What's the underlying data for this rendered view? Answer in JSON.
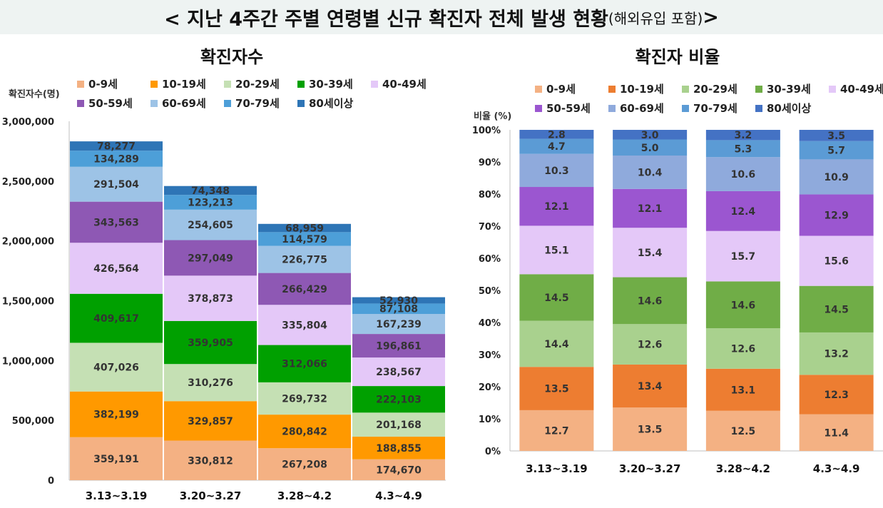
{
  "header": {
    "title": "< 지난 4주간 주별 연령별 신규 확진자 전체 발생 현황",
    "subtitle": "(해외유입 포함)",
    "suffix": ">"
  },
  "colors": [
    "#f4b183",
    "#ff9900",
    "#c5e0b4",
    "#00a000",
    "#e4c8f8",
    "#8e58b4",
    "#9dc3e6",
    "#4d9fd8",
    "#2e75b6"
  ],
  "colors_right": [
    "#f4b183",
    "#ed7d31",
    "#a9d18e",
    "#70ad47",
    "#e4c8f8",
    "#9b56d0",
    "#8faadc",
    "#5b9bd5",
    "#4472c4"
  ],
  "chart_data": [
    {
      "type": "bar",
      "stacked": true,
      "title": "확진자수",
      "ylabel": "확진자수(명)",
      "categories": [
        "3.13~3.19",
        "3.20~3.27",
        "3.28~4.2",
        "4.3~4.9"
      ],
      "ylim": [
        0,
        3000000
      ],
      "yticks": [
        "0",
        "500,000",
        "1,000,000",
        "1,500,000",
        "2,000,000",
        "2,500,000",
        "3,000,000"
      ],
      "legend_position": "top",
      "series": [
        {
          "name": "0-9세",
          "values": [
            359191,
            330812,
            267208,
            174670
          ],
          "labels": [
            "359,191",
            "330,812",
            "267,208",
            "174,670"
          ]
        },
        {
          "name": "10-19세",
          "values": [
            382199,
            329857,
            280842,
            188855
          ],
          "labels": [
            "382,199",
            "329,857",
            "280,842",
            "188,855"
          ]
        },
        {
          "name": "20-29세",
          "values": [
            407026,
            310276,
            269732,
            201168
          ],
          "labels": [
            "407,026",
            "310,276",
            "269,732",
            "201,168"
          ]
        },
        {
          "name": "30-39세",
          "values": [
            409617,
            359905,
            312066,
            222103
          ],
          "labels": [
            "409,617",
            "359,905",
            "312,066",
            "222,103"
          ]
        },
        {
          "name": "40-49세",
          "values": [
            426564,
            378873,
            335804,
            238567
          ],
          "labels": [
            "426,564",
            "378,873",
            "335,804",
            "238,567"
          ]
        },
        {
          "name": "50-59세",
          "values": [
            343563,
            297049,
            266429,
            196861
          ],
          "labels": [
            "343,563",
            "297,049",
            "266,429",
            "196,861"
          ]
        },
        {
          "name": "60-69세",
          "values": [
            291504,
            254605,
            226775,
            167239
          ],
          "labels": [
            "291,504",
            "254,605",
            "226,775",
            "167,239"
          ]
        },
        {
          "name": "70-79세",
          "values": [
            134289,
            123213,
            114579,
            87108
          ],
          "labels": [
            "134,289",
            "123,213",
            "114,579",
            "87,108"
          ]
        },
        {
          "name": "80세이상",
          "values": [
            78277,
            74348,
            68959,
            52930
          ],
          "labels": [
            "78,277",
            "74,348",
            "68,959",
            "52,930"
          ]
        }
      ]
    },
    {
      "type": "bar",
      "stacked": true,
      "title": "확진자 비율",
      "ylabel": "비율 (%)",
      "categories": [
        "3.13~3.19",
        "3.20~3.27",
        "3.28~4.2",
        "4.3~4.9"
      ],
      "ylim": [
        0,
        100
      ],
      "yticks": [
        "0%",
        "10%",
        "20%",
        "30%",
        "40%",
        "50%",
        "60%",
        "70%",
        "80%",
        "90%",
        "100%"
      ],
      "legend_position": "top",
      "series": [
        {
          "name": "0-9세",
          "values": [
            12.7,
            13.5,
            12.5,
            11.4
          ],
          "labels": [
            "12.7",
            "13.5",
            "12.5",
            "11.4"
          ]
        },
        {
          "name": "10-19세",
          "values": [
            13.5,
            13.4,
            13.1,
            12.3
          ],
          "labels": [
            "13.5",
            "13.4",
            "13.1",
            "12.3"
          ]
        },
        {
          "name": "20-29세",
          "values": [
            14.4,
            12.6,
            12.6,
            13.2
          ],
          "labels": [
            "14.4",
            "12.6",
            "12.6",
            "13.2"
          ]
        },
        {
          "name": "30-39세",
          "values": [
            14.5,
            14.6,
            14.6,
            14.5
          ],
          "labels": [
            "14.5",
            "14.6",
            "14.6",
            "14.5"
          ]
        },
        {
          "name": "40-49세",
          "values": [
            15.1,
            15.4,
            15.7,
            15.6
          ],
          "labels": [
            "15.1",
            "15.4",
            "15.7",
            "15.6"
          ]
        },
        {
          "name": "50-59세",
          "values": [
            12.1,
            12.1,
            12.4,
            12.9
          ],
          "labels": [
            "12.1",
            "12.1",
            "12.4",
            "12.9"
          ]
        },
        {
          "name": "60-69세",
          "values": [
            10.3,
            10.4,
            10.6,
            10.9
          ],
          "labels": [
            "10.3",
            "10.4",
            "10.6",
            "10.9"
          ]
        },
        {
          "name": "70-79세",
          "values": [
            4.7,
            5.0,
            5.3,
            5.7
          ],
          "labels": [
            "4.7",
            "5.0",
            "5.3",
            "5.7"
          ]
        },
        {
          "name": "80세이상",
          "values": [
            2.8,
            3.0,
            3.2,
            3.5
          ],
          "labels": [
            "2.8",
            "3.0",
            "3.2",
            "3.5"
          ]
        }
      ]
    }
  ]
}
